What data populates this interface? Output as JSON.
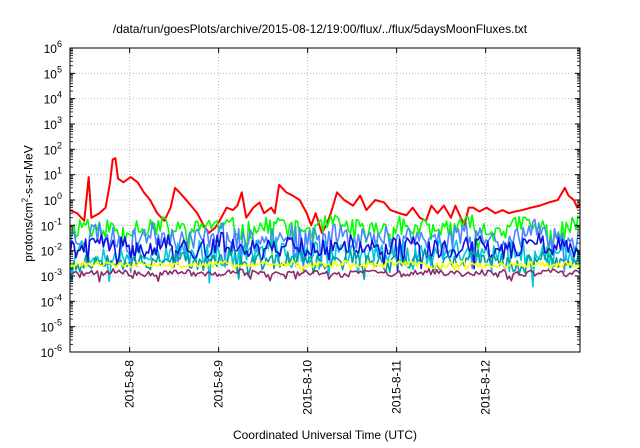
{
  "chart_data": {
    "type": "line",
    "title": "/data/run/goesPlots/archive/2015-08-12/19:00/flux/../flux/5daysMoonFluxes.txt",
    "xlabel": "Coordinated Universal Time (UTC)",
    "ylabel_parts": [
      "protons/cm",
      "2",
      "-s-sr-MeV"
    ],
    "yscale": "log",
    "ylim_exp": [
      -6,
      6
    ],
    "ytick_exps": [
      -6,
      -5,
      -4,
      -3,
      -2,
      -1,
      0,
      1,
      2,
      3,
      4,
      5,
      6
    ],
    "ytick_base": "10",
    "xlim_days": [
      7.12,
      12.85
    ],
    "xticks": [
      {
        "label": "2015-8-8",
        "day": 7.79
      },
      {
        "label": "2015-8-9",
        "day": 8.79
      },
      {
        "label": "2015-8-10",
        "day": 9.79
      },
      {
        "label": "2015-8-11",
        "day": 10.79
      },
      {
        "label": "2015-8-12",
        "day": 11.79
      }
    ],
    "grid": true,
    "series": [
      {
        "color": "#ff0000",
        "points": [
          [
            7.12,
            0.4
          ],
          [
            7.2,
            0.3
          ],
          [
            7.28,
            0.15
          ],
          [
            7.33,
            8
          ],
          [
            7.36,
            0.2
          ],
          [
            7.45,
            0.3
          ],
          [
            7.52,
            0.5
          ],
          [
            7.57,
            5
          ],
          [
            7.6,
            40
          ],
          [
            7.63,
            45
          ],
          [
            7.66,
            7
          ],
          [
            7.72,
            5
          ],
          [
            7.8,
            8
          ],
          [
            7.88,
            5
          ],
          [
            7.95,
            2
          ],
          [
            8.02,
            1
          ],
          [
            8.1,
            0.3
          ],
          [
            8.18,
            0.15
          ],
          [
            8.25,
            0.5
          ],
          [
            8.3,
            3
          ],
          [
            8.35,
            2
          ],
          [
            8.45,
            0.8
          ],
          [
            8.55,
            0.3
          ],
          [
            8.62,
            0.1
          ],
          [
            8.68,
            0.05
          ],
          [
            8.75,
            0.08
          ],
          [
            8.8,
            0.15
          ],
          [
            8.88,
            0.5
          ],
          [
            8.95,
            0.4
          ],
          [
            9.0,
            0.6
          ],
          [
            9.05,
            2
          ],
          [
            9.1,
            0.2
          ],
          [
            9.18,
            0.5
          ],
          [
            9.25,
            0.8
          ],
          [
            9.3,
            0.3
          ],
          [
            9.38,
            0.5
          ],
          [
            9.42,
            0.3
          ],
          [
            9.47,
            4
          ],
          [
            9.55,
            2
          ],
          [
            9.62,
            1.5
          ],
          [
            9.7,
            1
          ],
          [
            9.78,
            0.3
          ],
          [
            9.83,
            0.1
          ],
          [
            9.88,
            0.3
          ],
          [
            9.95,
            0.05
          ],
          [
            10.0,
            0.1
          ],
          [
            10.05,
            0.3
          ],
          [
            10.12,
            2
          ],
          [
            10.2,
            1
          ],
          [
            10.3,
            0.6
          ],
          [
            10.38,
            1.5
          ],
          [
            10.45,
            0.4
          ],
          [
            10.55,
            1
          ],
          [
            10.65,
            0.8
          ],
          [
            10.72,
            0.4
          ],
          [
            10.82,
            0.3
          ],
          [
            10.9,
            0.25
          ],
          [
            10.97,
            0.5
          ],
          [
            11.05,
            0.2
          ],
          [
            11.12,
            0.15
          ],
          [
            11.18,
            0.6
          ],
          [
            11.25,
            0.3
          ],
          [
            11.32,
            0.6
          ],
          [
            11.4,
            0.2
          ],
          [
            11.45,
            0.6
          ],
          [
            11.55,
            0.1
          ],
          [
            11.6,
            0.5
          ],
          [
            11.65,
            0.5
          ],
          [
            11.72,
            0.35
          ],
          [
            11.8,
            0.5
          ],
          [
            11.9,
            0.3
          ],
          [
            11.98,
            0.4
          ],
          [
            12.05,
            0.3
          ],
          [
            12.12,
            0.35
          ],
          [
            12.2,
            0.4
          ],
          [
            12.3,
            0.5
          ],
          [
            12.4,
            0.6
          ],
          [
            12.5,
            0.8
          ],
          [
            12.6,
            1
          ],
          [
            12.68,
            3
          ],
          [
            12.72,
            1.5
          ],
          [
            12.78,
            1
          ],
          [
            12.82,
            0.5
          ],
          [
            12.85,
            0.7
          ]
        ]
      },
      {
        "color": "#00ff00",
        "base": 0.08,
        "amp": 0.5,
        "seed": 11
      },
      {
        "color": "#4a86ff",
        "base": 0.035,
        "amp": 0.6,
        "seed": 23
      },
      {
        "color": "#00c8e0",
        "base": 0.008,
        "amp": 0.6,
        "seed": 37
      },
      {
        "color": "#1010e0",
        "base": 0.014,
        "amp": 0.5,
        "seed": 41
      },
      {
        "color": "#00a0a0",
        "base": 0.004,
        "amp": 0.4,
        "seed": 53
      },
      {
        "color": "#ffff00",
        "base": 0.0028,
        "amp": 0.15,
        "seed": 61
      },
      {
        "color": "#8a2b6e",
        "base": 0.0013,
        "amp": 0.15,
        "seed": 71
      }
    ]
  }
}
